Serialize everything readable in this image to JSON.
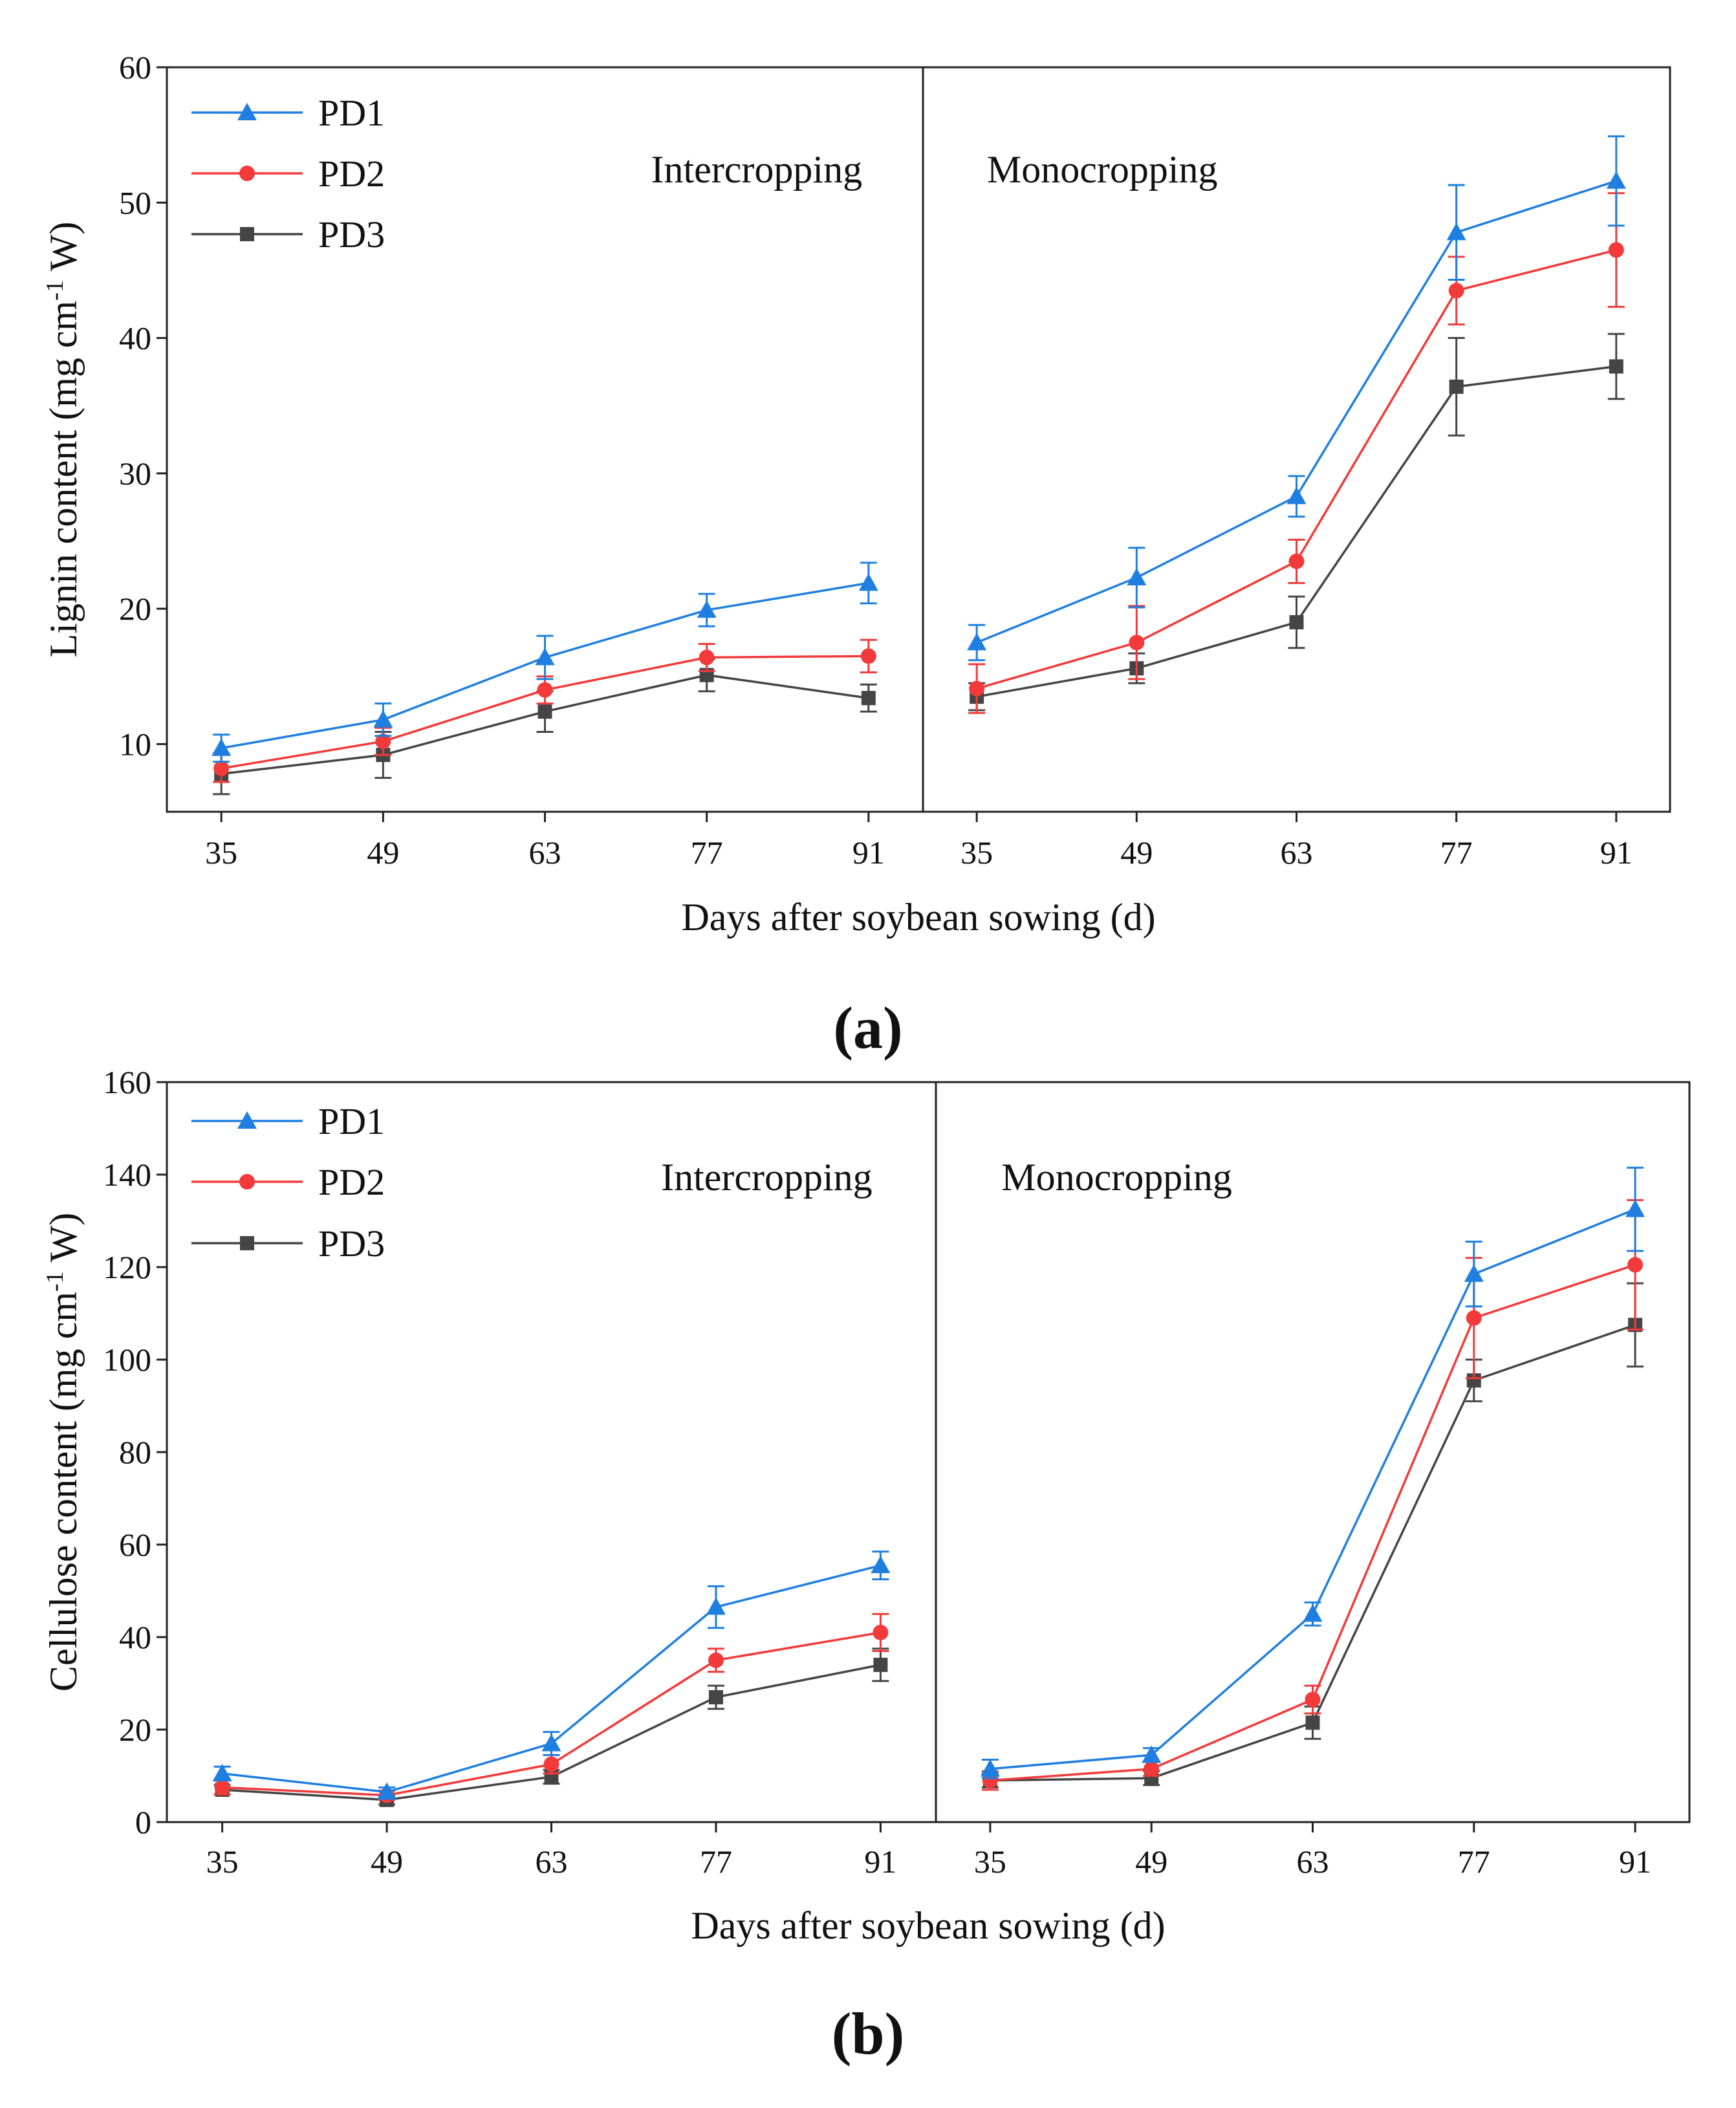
{
  "colors": {
    "PD1": "#1f7fe0",
    "PD2": "#f23a3a",
    "PD3": "#454545"
  },
  "chart_data": [
    {
      "type": "line",
      "panel_label": "(a)",
      "ylabel_main": "Lignin content (mg cm",
      "ylabel_sup": "-1",
      "ylabel_tail": " W)",
      "xlabel": "Days after soybean sowing (d)",
      "ylim": [
        5,
        60
      ],
      "yticks": [
        10,
        20,
        30,
        40,
        50,
        60
      ],
      "categories": [
        "35",
        "49",
        "63",
        "77",
        "91"
      ],
      "legend_position": "top-left",
      "regions": [
        {
          "name": "Intercropping",
          "series": [
            {
              "name": "PD1",
              "marker": "triangle",
              "values": [
                9.7,
                11.8,
                16.4,
                19.9,
                21.9
              ],
              "errors": [
                1.0,
                1.2,
                1.6,
                1.2,
                1.5
              ]
            },
            {
              "name": "PD2",
              "marker": "circle",
              "values": [
                8.2,
                10.2,
                14.0,
                16.4,
                16.5
              ],
              "errors": [
                1.0,
                1.0,
                1.0,
                1.0,
                1.2
              ]
            },
            {
              "name": "PD3",
              "marker": "square",
              "values": [
                7.8,
                9.2,
                12.4,
                15.1,
                13.4
              ],
              "errors": [
                1.5,
                1.7,
                1.5,
                1.2,
                1.0
              ]
            }
          ]
        },
        {
          "name": "Monocropping",
          "series": [
            {
              "name": "PD1",
              "marker": "triangle",
              "values": [
                17.5,
                22.3,
                28.3,
                47.8,
                51.6
              ],
              "errors": [
                1.3,
                2.2,
                1.5,
                3.5,
                3.3
              ]
            },
            {
              "name": "PD2",
              "marker": "circle",
              "values": [
                14.1,
                17.5,
                23.5,
                43.5,
                46.5
              ],
              "errors": [
                1.8,
                2.7,
                1.6,
                2.5,
                4.2
              ]
            },
            {
              "name": "PD3",
              "marker": "square",
              "values": [
                13.5,
                15.6,
                19.0,
                36.4,
                37.9
              ],
              "errors": [
                1.0,
                1.1,
                1.9,
                3.6,
                2.4
              ]
            }
          ]
        }
      ]
    },
    {
      "type": "line",
      "panel_label": "(b)",
      "ylabel_main": "Cellulose content (mg cm",
      "ylabel_sup": "-1",
      "ylabel_tail": " W)",
      "xlabel": "Days after soybean sowing (d)",
      "ylim": [
        0,
        160
      ],
      "yticks": [
        0,
        20,
        40,
        60,
        80,
        100,
        120,
        140,
        160
      ],
      "categories": [
        "35",
        "49",
        "63",
        "77",
        "91"
      ],
      "legend_position": "top-left",
      "regions": [
        {
          "name": "Intercropping",
          "series": [
            {
              "name": "PD1",
              "marker": "triangle",
              "values": [
                10.5,
                6.5,
                17.0,
                46.5,
                55.5
              ],
              "errors": [
                1.5,
                1.0,
                2.5,
                4.5,
                3.0
              ]
            },
            {
              "name": "PD2",
              "marker": "circle",
              "values": [
                7.5,
                5.8,
                12.5,
                35.0,
                41.0
              ],
              "errors": [
                1.5,
                1.0,
                2.0,
                2.5,
                4.0
              ]
            },
            {
              "name": "PD3",
              "marker": "square",
              "values": [
                7.0,
                4.8,
                9.8,
                27.0,
                34.0
              ],
              "errors": [
                1.0,
                1.0,
                1.5,
                2.5,
                3.5
              ]
            }
          ]
        },
        {
          "name": "Monocropping",
          "series": [
            {
              "name": "PD1",
              "marker": "triangle",
              "values": [
                11.5,
                14.5,
                45.0,
                118.5,
                132.5
              ],
              "errors": [
                2.0,
                1.5,
                2.5,
                7.0,
                9.0
              ]
            },
            {
              "name": "PD2",
              "marker": "circle",
              "values": [
                9.0,
                11.5,
                26.5,
                109.0,
                120.5
              ],
              "errors": [
                2.0,
                1.5,
                3.0,
                13.0,
                14.0
              ]
            },
            {
              "name": "PD3",
              "marker": "square",
              "values": [
                9.0,
                9.5,
                21.5,
                95.5,
                107.5
              ],
              "errors": [
                1.5,
                1.5,
                3.5,
                4.5,
                9.0
              ]
            }
          ]
        }
      ]
    }
  ]
}
